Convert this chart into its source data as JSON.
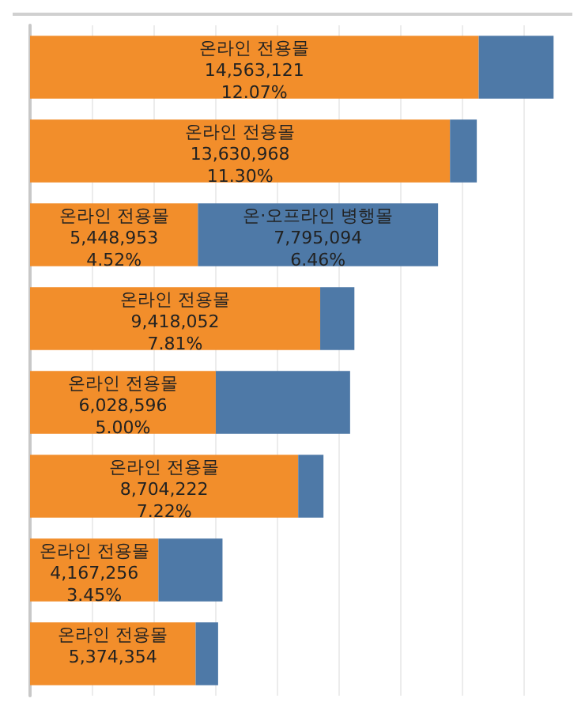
{
  "chart_data": {
    "type": "bar",
    "orientation": "horizontal",
    "stacked": true,
    "categories": [
      null,
      null,
      null,
      null,
      null,
      null,
      null,
      null
    ],
    "series": [
      {
        "name": "온라인 전용몰",
        "color": "#f28e2b",
        "values": [
          14563121,
          13630968,
          5448953,
          9418052,
          6028596,
          8704222,
          4167256,
          5374354
        ],
        "value_labels": [
          "14,563,121\n12.07%",
          "13,630,968\n11.30%",
          "5,448,953\n4.52%",
          "9,418,052\n7.81%",
          "6,028,596\n5.00%",
          "8,704,222\n7.22%",
          "4,167,256\n3.45%",
          "5,374,354"
        ]
      },
      {
        "name": "온·오프라인 병행몰",
        "color": "#4e79a7",
        "values": [
          2430000,
          870000,
          7795094,
          1110000,
          4360000,
          820000,
          2080000,
          730000
        ],
        "value_labels": [
          null,
          null,
          "7,795,094\n6.46%",
          null,
          null,
          null,
          null,
          null
        ]
      }
    ],
    "xlim": [
      0,
      17500000
    ],
    "xticks": [
      {
        "value": 0,
        "label": null
      },
      {
        "value": 2000000,
        "label": null
      },
      {
        "value": 4000000,
        "label": null
      },
      {
        "value": 6000000,
        "label": null
      },
      {
        "value": 8000000,
        "label": null
      },
      {
        "value": 10000000,
        "label": null
      },
      {
        "value": 12000000,
        "label": null
      },
      {
        "value": 14000000,
        "label": null
      },
      {
        "value": 16000000,
        "label": null
      }
    ],
    "grid": "x",
    "legend": false
  }
}
